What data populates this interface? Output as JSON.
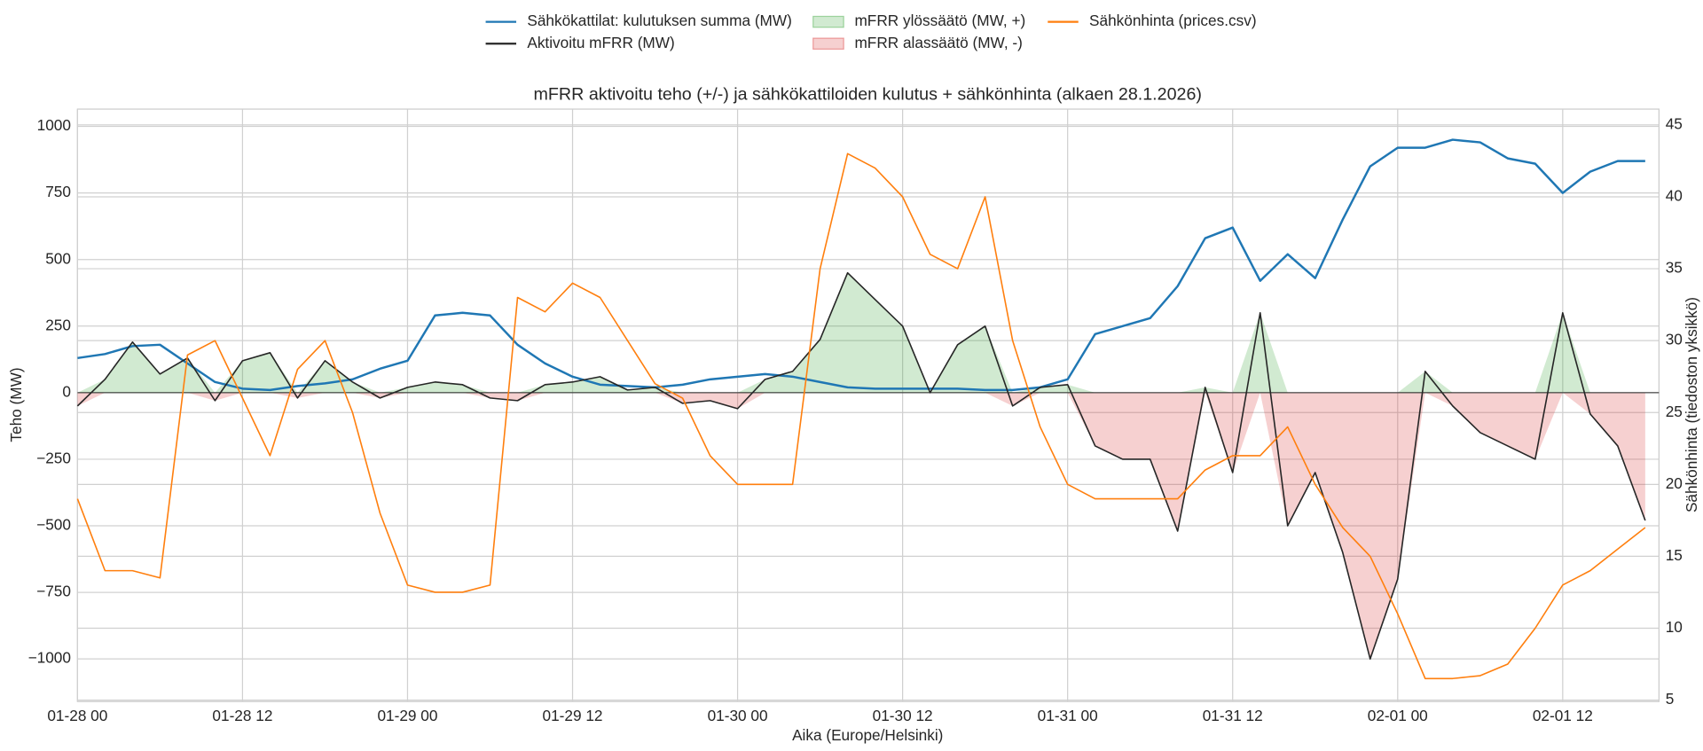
{
  "chart_data": {
    "type": "line",
    "title": "mFRR aktivoitu teho (+/-) ja sähkökattiloiden kulutus + sähkönhinta (alkaen 28.1.2026)",
    "x_label": "Aika (Europe/Helsinki)",
    "y_label": "Teho (MW)",
    "y2_label": "Sähkönhinta (tiedoston yksikkö)",
    "x": [
      "01-28 00",
      "01-28 02",
      "01-28 04",
      "01-28 06",
      "01-28 08",
      "01-28 10",
      "01-28 12",
      "01-28 14",
      "01-28 16",
      "01-28 18",
      "01-28 20",
      "01-28 22",
      "01-29 00",
      "01-29 02",
      "01-29 04",
      "01-29 06",
      "01-29 08",
      "01-29 10",
      "01-29 12",
      "01-29 14",
      "01-29 16",
      "01-29 18",
      "01-29 20",
      "01-29 22",
      "01-30 00",
      "01-30 02",
      "01-30 04",
      "01-30 06",
      "01-30 08",
      "01-30 10",
      "01-30 12",
      "01-30 14",
      "01-30 16",
      "01-30 18",
      "01-30 20",
      "01-30 22",
      "01-31 00",
      "01-31 02",
      "01-31 04",
      "01-31 06",
      "01-31 08",
      "01-31 10",
      "01-31 12",
      "01-31 14",
      "01-31 16",
      "01-31 18",
      "01-31 20",
      "01-31 22",
      "02-01 00",
      "02-01 02",
      "02-01 04",
      "02-01 06",
      "02-01 08",
      "02-01 10",
      "02-01 12",
      "02-01 14",
      "02-01 16",
      "02-01 18"
    ],
    "xlim": [
      "01-28 00",
      "02-01 19"
    ],
    "xticks": [
      "01-28 00",
      "01-28 12",
      "01-29 00",
      "01-29 12",
      "01-30 00",
      "01-30 12",
      "01-31 00",
      "01-31 12",
      "02-01 00",
      "02-01 12"
    ],
    "ylim": [
      -1160,
      1065
    ],
    "yticks": [
      {
        "value": -1000,
        "label": "−1000"
      },
      {
        "value": -750,
        "label": "−750"
      },
      {
        "value": -500,
        "label": "−500"
      },
      {
        "value": -250,
        "label": "−250"
      },
      0,
      250,
      500,
      750,
      1000
    ],
    "y2lim": [
      4.9,
      46.1
    ],
    "y2ticks": [
      5,
      10,
      15,
      20,
      25,
      30,
      35,
      40,
      45
    ],
    "grid": true,
    "legend": "top",
    "series": [
      {
        "name": "Sähkökattilat: kulutuksen summa (MW)",
        "color": "#1f77b4",
        "values": [
          130,
          145,
          175,
          180,
          110,
          40,
          15,
          10,
          25,
          35,
          50,
          90,
          120,
          290,
          300,
          290,
          180,
          110,
          60,
          30,
          25,
          20,
          30,
          50,
          60,
          70,
          60,
          40,
          20,
          15,
          15,
          15,
          15,
          10,
          10,
          20,
          50,
          220,
          250,
          280,
          400,
          580,
          620,
          420,
          520,
          430,
          650,
          850,
          920,
          920,
          950,
          940,
          880,
          860,
          750,
          830,
          870,
          870
        ]
      },
      {
        "name": "Aktivoitu mFRR (MW)",
        "color": "#262626",
        "values": [
          -50,
          50,
          190,
          70,
          130,
          -30,
          120,
          150,
          -20,
          120,
          40,
          -20,
          20,
          40,
          30,
          -20,
          -30,
          30,
          40,
          60,
          10,
          20,
          -40,
          -30,
          -60,
          50,
          80,
          200,
          450,
          350,
          250,
          0,
          180,
          250,
          -50,
          20,
          30,
          -200,
          -250,
          -250,
          -520,
          20,
          -300,
          300,
          -500,
          -300,
          -600,
          -1000,
          -700,
          80,
          -50,
          -150,
          -200,
          -250,
          300,
          -80,
          -200,
          -480
        ]
      },
      {
        "name": "Sähkönhinta (prices.csv)",
        "color": "#ff7f0e",
        "axis": "y2",
        "values": [
          19,
          14,
          14,
          13.5,
          29,
          30,
          26,
          22,
          28,
          30,
          25,
          18,
          13,
          12.5,
          12.5,
          13,
          33,
          32,
          34,
          33,
          30,
          27,
          26,
          22,
          20,
          20,
          20,
          35,
          43,
          42,
          40,
          36,
          35,
          40,
          30,
          24,
          20,
          19,
          19,
          19,
          19,
          21,
          22,
          22,
          24,
          20,
          17,
          15,
          11,
          6.5,
          6.5,
          6.7,
          7.5,
          10,
          13,
          14,
          15.5,
          17
        ]
      }
    ],
    "fills": [
      {
        "name": "mFRR ylössäätö (MW, +)",
        "color": "#2ca02c"
      },
      {
        "name": "mFRR alassäätö (MW, -)",
        "color": "#d62728"
      }
    ]
  }
}
